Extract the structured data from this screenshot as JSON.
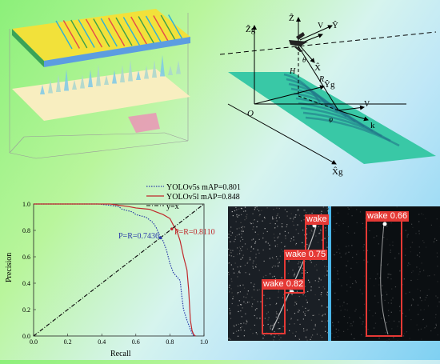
{
  "geometry_figure": {
    "axis_labels": {
      "z_g": "Ẑg",
      "z": "Ẑ",
      "y": "Ŷ",
      "x": "X̂",
      "v_top": "V",
      "y_g": "Ŷg",
      "x_g": "X̂g",
      "origin": "O",
      "k": "k",
      "v_bottom": "V",
      "r": "R",
      "h": "H",
      "theta": "θ",
      "phi": "φ"
    }
  },
  "pr_chart": {
    "legend": {
      "yolov5s": "YOLOv5s mAP=0.801",
      "yolov5l": "YOLOv5l mAP=0.848",
      "diag": "y=x"
    },
    "annotations": {
      "s_break": "P=R=0.7436",
      "l_break": "P=R=0.8110"
    },
    "xlabel": "Recall",
    "ylabel": "Precision",
    "ticks": [
      "0.0",
      "0.2",
      "0.4",
      "0.6",
      "0.8",
      "1.0"
    ]
  },
  "chart_data": {
    "type": "line",
    "xlabel": "Recall",
    "ylabel": "Precision",
    "xlim": [
      0,
      1
    ],
    "ylim": [
      0,
      1
    ],
    "series": [
      {
        "name": "YOLOv5s mAP=0.801",
        "color": "#2a3aa8",
        "style": "dotted",
        "x": [
          0,
          0.38,
          0.45,
          0.5,
          0.52,
          0.58,
          0.6,
          0.66,
          0.7,
          0.72,
          0.74,
          0.76,
          0.78,
          0.8,
          0.82,
          0.84,
          0.86,
          0.87,
          0.88,
          0.9,
          0.92,
          0.93,
          0.94
        ],
        "y": [
          1,
          1,
          0.99,
          0.98,
          0.96,
          0.94,
          0.92,
          0.9,
          0.86,
          0.82,
          0.76,
          0.72,
          0.65,
          0.55,
          0.48,
          0.45,
          0.42,
          0.3,
          0.2,
          0.12,
          0.05,
          0.02,
          0
        ]
      },
      {
        "name": "YOLOv5l mAP=0.848",
        "color": "#c0282b",
        "style": "solid",
        "x": [
          0,
          0.45,
          0.5,
          0.56,
          0.6,
          0.68,
          0.72,
          0.76,
          0.8,
          0.82,
          0.84,
          0.86,
          0.88,
          0.9,
          0.91,
          0.92,
          0.93,
          0.94,
          0.95
        ],
        "y": [
          1,
          1,
          0.99,
          0.98,
          0.97,
          0.96,
          0.94,
          0.92,
          0.89,
          0.84,
          0.8,
          0.72,
          0.6,
          0.5,
          0.35,
          0.12,
          0.04,
          0.01,
          0
        ]
      },
      {
        "name": "y=x",
        "color": "#111111",
        "style": "dashdot",
        "x": [
          0,
          1
        ],
        "y": [
          0,
          1
        ]
      }
    ],
    "points": [
      {
        "label": "P=R=0.7436",
        "x": 0.7436,
        "y": 0.7436
      },
      {
        "label": "P=R=0.8110",
        "x": 0.811,
        "y": 0.811
      }
    ],
    "grid": false,
    "legend_position": "top-right"
  },
  "detections": {
    "labels": [
      "wake",
      "0.75",
      "0.82",
      "0.66"
    ],
    "items": [
      {
        "label": "wake",
        "score": "",
        "text": "wake"
      },
      {
        "label": "wake",
        "score": "0.75",
        "text": "wake 0.75"
      },
      {
        "label": "wake",
        "score": "0.82",
        "text": "wake 0.82"
      },
      {
        "label": "wake",
        "score": "0.66",
        "text": "wake 0.66"
      }
    ]
  }
}
